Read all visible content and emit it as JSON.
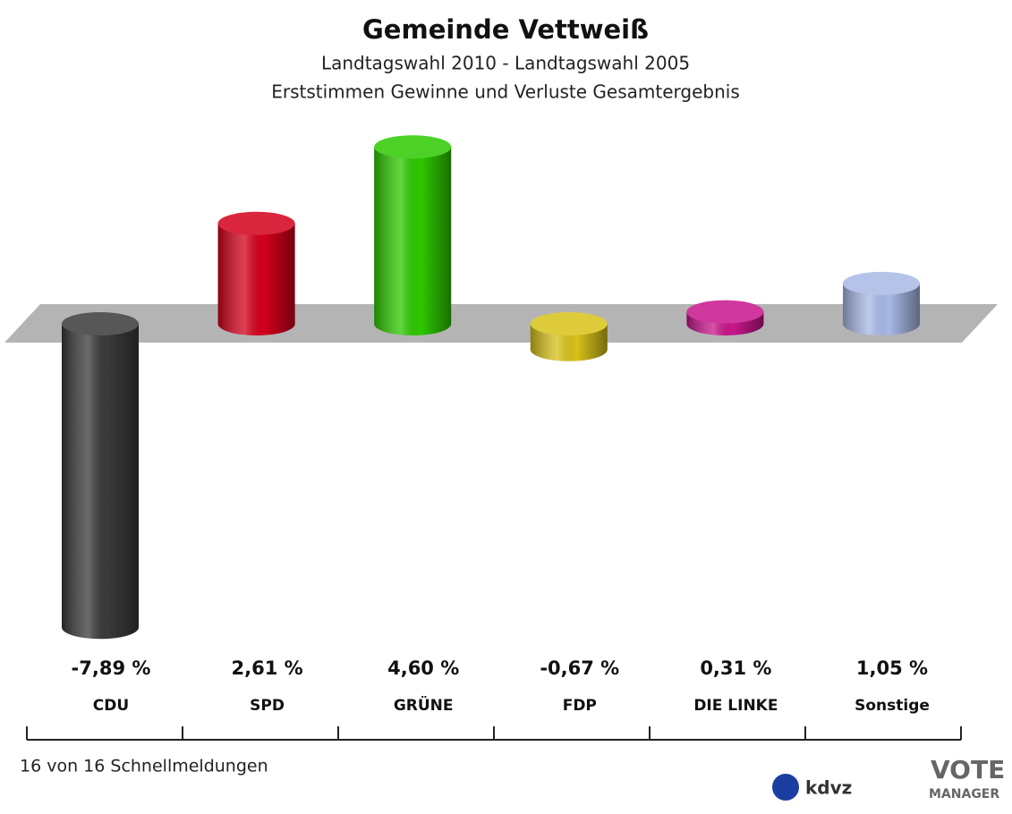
{
  "chart_data": {
    "type": "bar",
    "title": "Gemeinde Vettweiß",
    "subtitle": [
      "Landtagswahl 2010 - Landtagswahl 2005",
      "Erststimmen Gewinne und Verluste Gesamtergebnis"
    ],
    "categories": [
      "CDU",
      "SPD",
      "GRÜNE",
      "FDP",
      "DIE LINKE",
      "Sonstige"
    ],
    "values": [
      -7.89,
      2.61,
      4.6,
      -0.67,
      0.31,
      1.05
    ],
    "value_labels": [
      "-7,89 %",
      "2,61 %",
      "4,60 %",
      "-0,67 %",
      "0,31 %",
      "1,05 %"
    ],
    "colors": [
      "#3a3a3a",
      "#d4001c",
      "#2ec900",
      "#d8c21a",
      "#c8168c",
      "#a9b9e6"
    ],
    "footnote": "16 von 16 Schnellmeldungen",
    "logos": [
      "kdvz",
      "VOTE",
      "MANAGER"
    ]
  }
}
